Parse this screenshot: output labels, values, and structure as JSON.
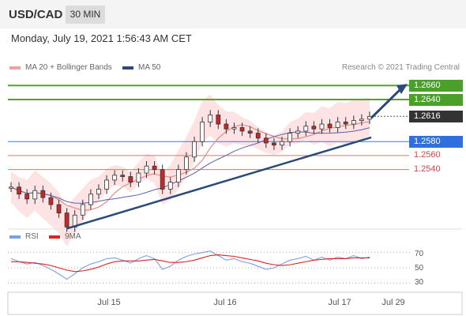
{
  "header": {
    "pair": "USD/CAD",
    "timeframe": "30 MIN"
  },
  "datetime": "Monday, July 19, 2021 1:56:43 AM CET",
  "legend": {
    "ma20": "MA 20 + Bollinger Bands",
    "ma50": "MA 50",
    "credit": "Research © 2021 Trading Central"
  },
  "rsi_legend": {
    "rsi": "RSI",
    "ma": "9MA"
  },
  "colors": {
    "resistance": "#5aa02c",
    "support": "#3b7ddd",
    "minor": "#e07070",
    "trend": "#2a4a7a",
    "up_candle": "#2e7d32",
    "down_candle": "#c62828",
    "bollinger": "#fcdcdc",
    "ma20": "#e88a8a",
    "ma50": "#5a5fa8"
  },
  "chart_data": [
    {
      "type": "line",
      "title": "",
      "series": [
        {
          "name": "MA 20 + Bollinger Bands",
          "values": []
        },
        {
          "name": "MA 50",
          "values": []
        }
      ],
      "price_approx": [
        1.2515,
        1.2505,
        1.2498,
        1.251,
        1.25,
        1.249,
        1.2478,
        1.2458,
        1.2475,
        1.249,
        1.2505,
        1.2512,
        1.2525,
        1.2532,
        1.253,
        1.2522,
        1.2535,
        1.2545,
        1.254,
        1.2512,
        1.2522,
        1.254,
        1.2558,
        1.258,
        1.2608,
        1.2618,
        1.2605,
        1.2598,
        1.26,
        1.2595,
        1.2592,
        1.2585,
        1.2578,
        1.2575,
        1.258,
        1.2592,
        1.2595,
        1.2602,
        1.2598,
        1.2605,
        1.26,
        1.2608,
        1.2605,
        1.261,
        1.2612,
        1.2616
      ],
      "levels": [
        {
          "label": "1.2660",
          "value": 1.266,
          "role": "resistance",
          "boxed": true
        },
        {
          "label": "1.2640",
          "value": 1.264,
          "role": "resistance",
          "boxed": true
        },
        {
          "label": "1.2616",
          "value": 1.2616,
          "role": "last",
          "boxed": true
        },
        {
          "label": "1.2580",
          "value": 1.258,
          "role": "pivot",
          "boxed": true
        },
        {
          "label": "1.2560",
          "value": 1.256,
          "role": "support",
          "boxed": false
        },
        {
          "label": "1.2540",
          "value": 1.254,
          "role": "support",
          "boxed": false
        }
      ],
      "x_ticks": [
        "Jul 15",
        "Jul 16",
        "Jul 17",
        "Jul 29"
      ],
      "ylim": [
        1.2455,
        1.2675
      ],
      "legend_position": "top-left"
    },
    {
      "type": "line",
      "title": "",
      "series": [
        {
          "name": "RSI",
          "values": [
            62,
            58,
            55,
            57,
            53,
            48,
            42,
            35,
            42,
            50,
            55,
            58,
            62,
            63,
            60,
            56,
            62,
            66,
            62,
            48,
            52,
            60,
            65,
            68,
            70,
            72,
            66,
            60,
            62,
            58,
            56,
            52,
            48,
            50,
            55,
            60,
            62,
            65,
            60,
            64,
            60,
            64,
            62,
            66,
            62,
            64
          ]
        },
        {
          "name": "9MA",
          "values": [
            58,
            58,
            57,
            56,
            55,
            53,
            50,
            47,
            45,
            46,
            48,
            51,
            55,
            58,
            59,
            59,
            59,
            60,
            61,
            59,
            57,
            57,
            58,
            60,
            63,
            66,
            67,
            66,
            65,
            63,
            61,
            59,
            56,
            54,
            53,
            54,
            56,
            58,
            60,
            61,
            62,
            62,
            62,
            63,
            63,
            63
          ]
        }
      ],
      "y_ticks": [
        "70",
        "50",
        "30"
      ],
      "ylim": [
        20,
        80
      ],
      "legend_position": "top-left"
    }
  ]
}
